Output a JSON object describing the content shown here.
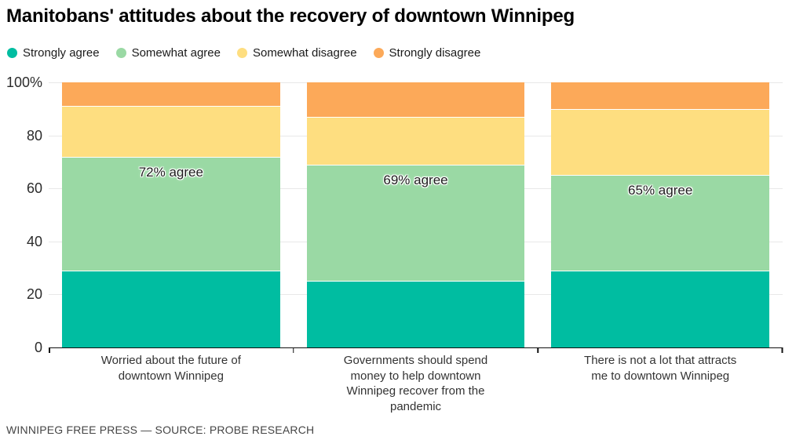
{
  "title": "Manitobans' attitudes about the recovery of downtown Winnipeg",
  "footer": {
    "credit": "WINNIPEG FREE PRESS — SOURCE: PROBE RESEARCH"
  },
  "colors": {
    "strongly_agree": "#00bda1",
    "somewhat_agree": "#9ad9a4",
    "somewhat_disagree": "#fede80",
    "strongly_disagree": "#fca959",
    "gridline": "#e8e8e8",
    "axis": "#111111"
  },
  "legend": {
    "items": [
      {
        "label": "Strongly agree",
        "color": "#00bda1"
      },
      {
        "label": "Somewhat agree",
        "color": "#9ad9a4"
      },
      {
        "label": "Somewhat disagree",
        "color": "#fede80"
      },
      {
        "label": "Strongly disagree",
        "color": "#fca959"
      }
    ]
  },
  "chart_data": {
    "type": "bar",
    "stacked": true,
    "unit": "percent",
    "title": "Manitobans' attitudes about the recovery of downtown Winnipeg",
    "categories": [
      "Worried about the future of downtown Winnipeg",
      "Governments should spend money to help downtown Winnipeg recover from the pandemic",
      "There is not a lot that attracts me to downtown Winnipeg"
    ],
    "category_display_lines": [
      [
        "Worried about the future of",
        "downtown Winnipeg"
      ],
      [
        "Governments should spend",
        "money to help downtown",
        "Winnipeg recover from the",
        "pandemic"
      ],
      [
        "There is not a lot that attracts",
        "me to downtown Winnipeg"
      ]
    ],
    "series": [
      {
        "name": "Strongly agree",
        "color": "#00bda1",
        "values": [
          29,
          25,
          29
        ]
      },
      {
        "name": "Somewhat agree",
        "color": "#9ad9a4",
        "values": [
          43,
          44,
          36
        ]
      },
      {
        "name": "Somewhat disagree",
        "color": "#fede80",
        "values": [
          19,
          18,
          25
        ]
      },
      {
        "name": "Strongly disagree",
        "color": "#fca959",
        "values": [
          9,
          13,
          10
        ]
      }
    ],
    "annotations": [
      "72% agree",
      "69% agree",
      "65% agree"
    ],
    "y_ticks": [
      0,
      20,
      40,
      60,
      80,
      100
    ],
    "y_tick_labels": [
      "0",
      "20",
      "40",
      "60",
      "80",
      "100%"
    ],
    "ylim": [
      0,
      100
    ],
    "grid": true,
    "legend_position": "top"
  }
}
